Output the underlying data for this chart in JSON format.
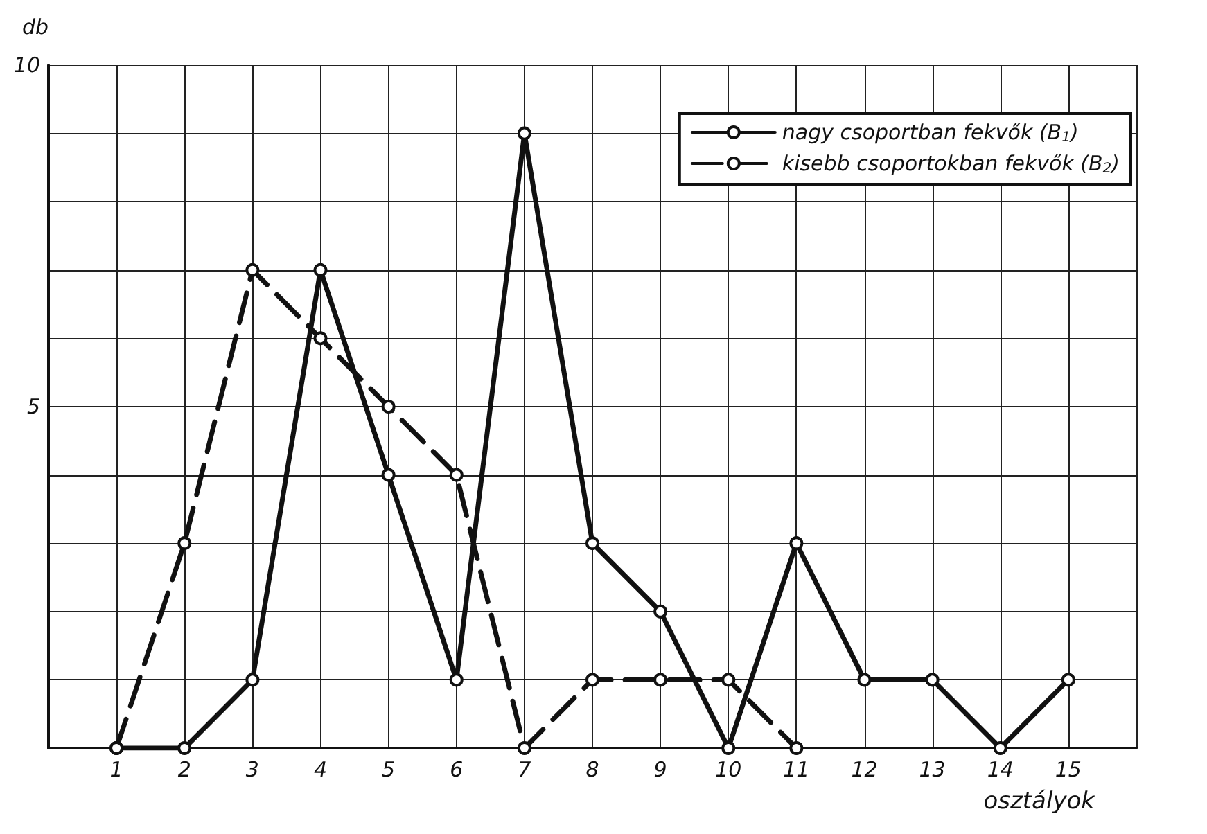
{
  "chart_data": {
    "type": "line",
    "xlabel": "osztályok",
    "ylabel": "db",
    "xlim": [
      0,
      16
    ],
    "ylim": [
      0,
      10
    ],
    "xticks": [
      {
        "value": 0,
        "label": null
      },
      1,
      2,
      3,
      4,
      5,
      6,
      7,
      8,
      9,
      10,
      11,
      12,
      13,
      14,
      15,
      {
        "value": 16,
        "label": null
      }
    ],
    "yticks": [
      {
        "value": 0,
        "label": null
      },
      {
        "value": 1,
        "label": null
      },
      {
        "value": 2,
        "label": null
      },
      {
        "value": 3,
        "label": null
      },
      {
        "value": 4,
        "label": null
      },
      5,
      {
        "value": 6,
        "label": null
      },
      {
        "value": 7,
        "label": null
      },
      {
        "value": 8,
        "label": null
      },
      {
        "value": 9,
        "label": null
      },
      10
    ],
    "grid": true,
    "legend": "top right",
    "marker": "circle",
    "series": [
      {
        "name": "nagy csoportban fekvők (B$_{1}$)",
        "color": "#111111",
        "line_style": "solid",
        "x": [
          1,
          2,
          3,
          4,
          5,
          6,
          7,
          8,
          9,
          10,
          11,
          12,
          13,
          14,
          15
        ],
        "values": [
          0,
          0,
          1,
          7,
          4,
          1,
          9,
          3,
          2,
          0,
          3,
          1,
          1,
          0,
          1
        ]
      },
      {
        "name": "kisebb csoportokban fekvők (B$_{2}$)",
        "color": "#111111",
        "line_style": "dashed",
        "x": [
          1,
          2,
          3,
          4,
          5,
          6,
          7,
          8,
          9,
          10,
          11
        ],
        "values": [
          0,
          3,
          7,
          6,
          5,
          4,
          0,
          1,
          1,
          1,
          0
        ]
      }
    ]
  }
}
